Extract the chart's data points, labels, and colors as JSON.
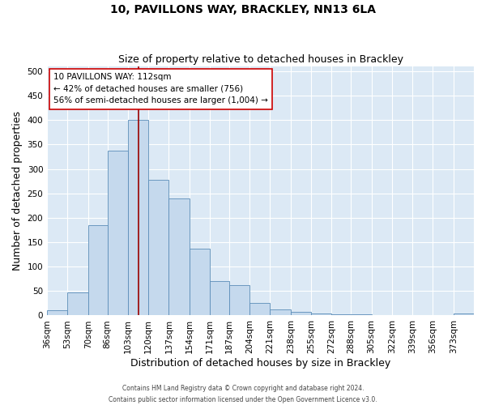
{
  "title": "10, PAVILLONS WAY, BRACKLEY, NN13 6LA",
  "subtitle": "Size of property relative to detached houses in Brackley",
  "xlabel": "Distribution of detached houses by size in Brackley",
  "ylabel": "Number of detached properties",
  "bin_labels": [
    "36sqm",
    "53sqm",
    "70sqm",
    "86sqm",
    "103sqm",
    "120sqm",
    "137sqm",
    "154sqm",
    "171sqm",
    "187sqm",
    "204sqm",
    "221sqm",
    "238sqm",
    "255sqm",
    "272sqm",
    "288sqm",
    "305sqm",
    "322sqm",
    "339sqm",
    "356sqm",
    "373sqm"
  ],
  "bin_edges": [
    36,
    53,
    70,
    86,
    103,
    120,
    137,
    154,
    171,
    187,
    204,
    221,
    238,
    255,
    272,
    288,
    305,
    322,
    339,
    356,
    373,
    390
  ],
  "bar_values": [
    10,
    47,
    185,
    337,
    400,
    277,
    240,
    137,
    70,
    62,
    26,
    13,
    8,
    4,
    3,
    2,
    1,
    1,
    0,
    0,
    4
  ],
  "bar_color": "#c5d9ed",
  "bar_edge_color": "#5b8db8",
  "property_value": 112,
  "vline_color": "#990000",
  "annotation_line1": "10 PAVILLONS WAY: 112sqm",
  "annotation_line2": "← 42% of detached houses are smaller (756)",
  "annotation_line3": "56% of semi-detached houses are larger (1,004) →",
  "annotation_box_facecolor": "#ffffff",
  "annotation_box_edgecolor": "#cc0000",
  "ylim": [
    0,
    510
  ],
  "yticks": [
    0,
    50,
    100,
    150,
    200,
    250,
    300,
    350,
    400,
    450,
    500
  ],
  "fig_facecolor": "#ffffff",
  "plot_bg_color": "#dce9f5",
  "grid_color": "#ffffff",
  "footer_line1": "Contains HM Land Registry data © Crown copyright and database right 2024.",
  "footer_line2": "Contains public sector information licensed under the Open Government Licence v3.0.",
  "title_fontsize": 10,
  "subtitle_fontsize": 9,
  "xlabel_fontsize": 9,
  "ylabel_fontsize": 9,
  "tick_fontsize": 7.5,
  "annotation_fontsize": 7.5
}
